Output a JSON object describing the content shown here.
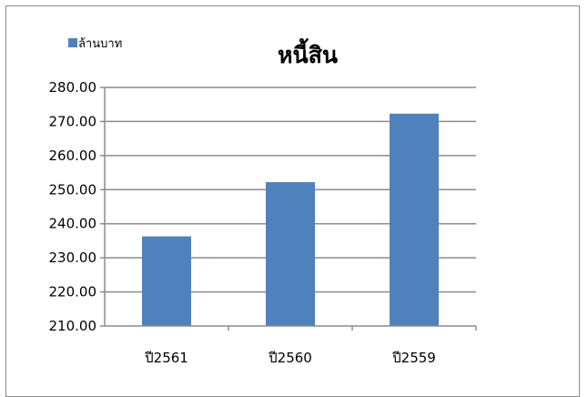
{
  "chart_data": {
    "type": "bar",
    "title": "หนี้สิน",
    "categories": [
      "ปี2561",
      "ปี2560",
      "ปี2559"
    ],
    "series": [
      {
        "name": "ล้านบาท",
        "values": [
          236.3,
          252.2,
          272.3
        ],
        "color": "#4f81bd"
      }
    ],
    "ylim": [
      210,
      280
    ],
    "yticks": [
      "210.00",
      "220.00",
      "230.00",
      "240.00",
      "250.00",
      "260.00",
      "270.00",
      "280.00"
    ],
    "grid": true,
    "legend_position": "top-left"
  }
}
